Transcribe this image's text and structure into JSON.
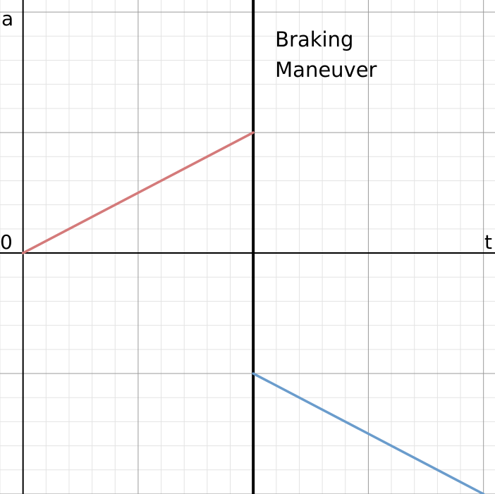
{
  "chart_data": {
    "type": "line",
    "xlabel": "t",
    "ylabel": "a",
    "origin_label": "0",
    "annotation": [
      "Braking",
      "Maneuver"
    ],
    "xlim": [
      -0.2,
      4.1
    ],
    "ylim": [
      -2.0,
      2.1
    ],
    "grid": true,
    "divider_x": 2,
    "series": [
      {
        "color": "#d47a7a",
        "x": [
          0,
          2
        ],
        "y": [
          0,
          1
        ]
      },
      {
        "color": "#6a9ccc",
        "x": [
          2,
          4
        ],
        "y": [
          -1,
          -2
        ]
      }
    ]
  }
}
